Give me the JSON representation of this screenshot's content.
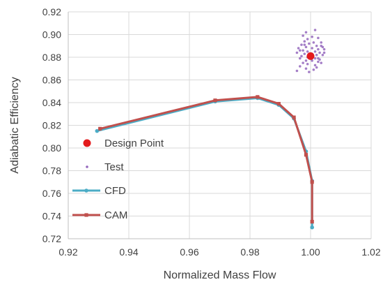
{
  "chart_data": {
    "type": "scatter",
    "title": "",
    "xlabel": "Normalized Mass Flow",
    "ylabel": "Adiabatic Efficiency",
    "xlim": [
      0.92,
      1.02
    ],
    "ylim": [
      0.72,
      0.92
    ],
    "x_ticks": [
      "0.92",
      "0.94",
      "0.96",
      "0.98",
      "1.00",
      "1.02"
    ],
    "y_ticks": [
      "0.72",
      "0.74",
      "0.76",
      "0.78",
      "0.80",
      "0.82",
      "0.84",
      "0.86",
      "0.88",
      "0.90",
      "0.92"
    ],
    "grid": true,
    "legend_position": "left",
    "series": [
      {
        "name": "Design Point",
        "kind": "marker",
        "color": "#e31a1c",
        "points": [
          [
            1.0,
            0.881
          ]
        ]
      },
      {
        "name": "Test",
        "kind": "scatter",
        "color": "#9467bd",
        "points": [
          [
            0.9985,
            0.902
          ],
          [
            1.0015,
            0.904
          ],
          [
            0.9975,
            0.899
          ],
          [
            1.0005,
            0.898
          ],
          [
            0.999,
            0.896
          ],
          [
            1.0025,
            0.897
          ],
          [
            0.998,
            0.894
          ],
          [
            1.001,
            0.893
          ],
          [
            0.9995,
            0.892
          ],
          [
            1.0035,
            0.893
          ],
          [
            0.997,
            0.891
          ],
          [
            1.002,
            0.89
          ],
          [
            0.9985,
            0.889
          ],
          [
            1.004,
            0.889
          ],
          [
            0.996,
            0.888
          ],
          [
            1.0005,
            0.888
          ],
          [
            1.0025,
            0.887
          ],
          [
            0.9975,
            0.886
          ],
          [
            1.0045,
            0.887
          ],
          [
            0.999,
            0.885
          ],
          [
            1.0015,
            0.885
          ],
          [
            0.9955,
            0.884
          ],
          [
            1.003,
            0.884
          ],
          [
            0.998,
            0.883
          ],
          [
            1.0005,
            0.883
          ],
          [
            1.002,
            0.882
          ],
          [
            0.997,
            0.881
          ],
          [
            1.004,
            0.882
          ],
          [
            0.999,
            0.88
          ],
          [
            1.0015,
            0.879
          ],
          [
            0.9965,
            0.879
          ],
          [
            1.003,
            0.878
          ],
          [
            0.9985,
            0.877
          ],
          [
            1.0005,
            0.877
          ],
          [
            1.0025,
            0.876
          ],
          [
            0.9975,
            0.875
          ],
          [
            1.0035,
            0.875
          ],
          [
            0.999,
            0.874
          ],
          [
            1.0015,
            0.873
          ],
          [
            0.9965,
            0.872
          ],
          [
            1.002,
            0.871
          ],
          [
            0.9985,
            0.87
          ],
          [
            1.001,
            0.869
          ],
          [
            0.9955,
            0.868
          ],
          [
            0.9995,
            0.867
          ],
          [
            1.0035,
            0.89
          ],
          [
            0.9965,
            0.886
          ],
          [
            1.0045,
            0.884
          ],
          [
            0.998,
            0.891
          ],
          [
            1.0025,
            0.879
          ]
        ]
      },
      {
        "name": "CFD",
        "kind": "line",
        "color": "#4bacc6",
        "points": [
          [
            0.9295,
            0.815
          ],
          [
            0.9685,
            0.841
          ],
          [
            0.9825,
            0.844
          ],
          [
            0.9895,
            0.838
          ],
          [
            0.9945,
            0.826
          ],
          [
            0.9985,
            0.797
          ],
          [
            1.0005,
            0.771
          ],
          [
            1.0005,
            0.73
          ]
        ]
      },
      {
        "name": "CAM",
        "kind": "line",
        "color": "#c0504d",
        "points": [
          [
            0.9305,
            0.817
          ],
          [
            0.9685,
            0.842
          ],
          [
            0.9825,
            0.845
          ],
          [
            0.9895,
            0.839
          ],
          [
            0.9945,
            0.827
          ],
          [
            0.9985,
            0.794
          ],
          [
            1.0005,
            0.77
          ],
          [
            1.0005,
            0.735
          ]
        ]
      }
    ]
  }
}
